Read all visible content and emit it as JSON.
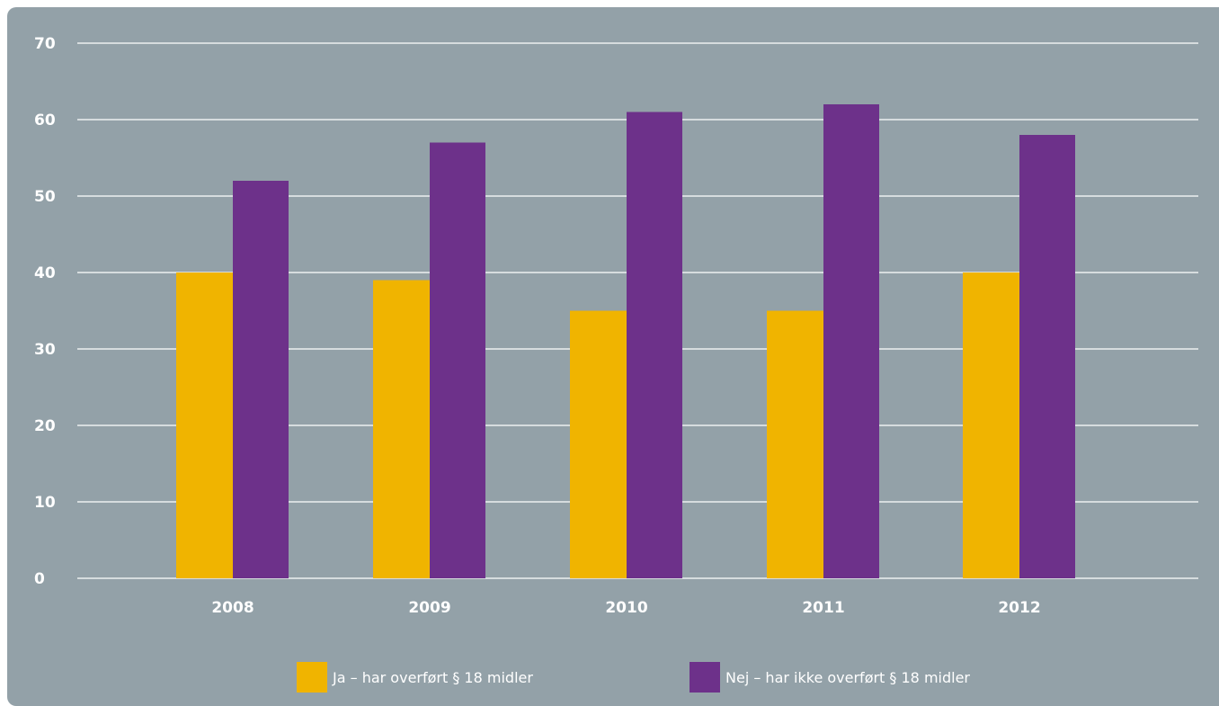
{
  "chart_data": {
    "type": "bar",
    "categories": [
      "2008",
      "2009",
      "2010",
      "2011",
      "2012"
    ],
    "series": [
      {
        "name": "Ja – har overført § 18 midler",
        "color": "#f0b400",
        "values": [
          40,
          39,
          35,
          35,
          40
        ]
      },
      {
        "name": "Nej – har ikke overført § 18 midler",
        "color": "#6d318a",
        "values": [
          52,
          57,
          61,
          62,
          58
        ]
      }
    ],
    "yticks": [
      "0",
      "10",
      "20",
      "30",
      "40",
      "50",
      "60",
      "70"
    ],
    "ylim": [
      0,
      70
    ],
    "grid": true,
    "legend_position": "bottom",
    "title": "",
    "xlabel": "",
    "ylabel": ""
  },
  "colors": {
    "background": "#93a1a8",
    "grid": "#ffffff"
  }
}
